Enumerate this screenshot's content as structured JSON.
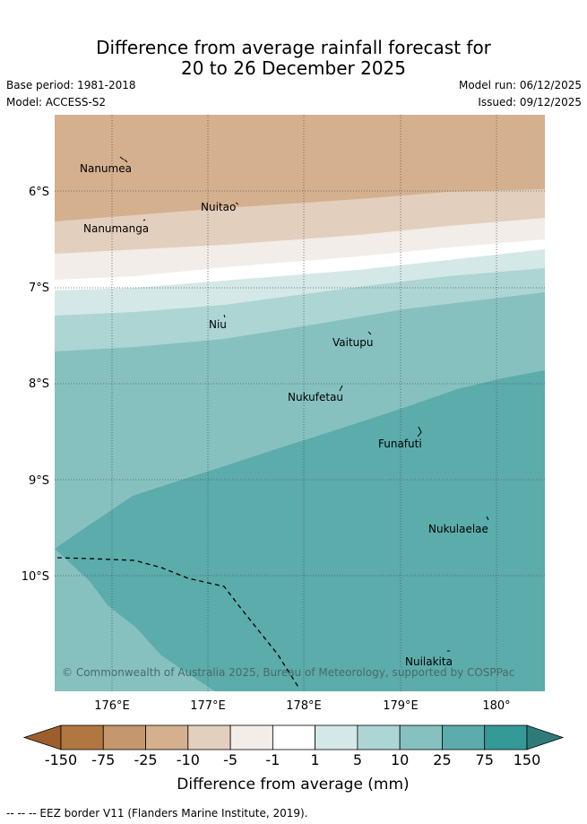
{
  "title": {
    "line1": "Difference from average rainfall forecast for",
    "line2": "20 to 26 December 2025"
  },
  "meta": {
    "base_period": "Base period: 1981-2018",
    "model": "Model: ACCESS-S2",
    "model_run": "Model run: 06/12/2025",
    "issued": "Issued: 09/12/2025"
  },
  "map": {
    "lat_ticks": [
      "6°S",
      "7°S",
      "8°S",
      "9°S",
      "10°S"
    ],
    "lon_ticks": [
      "176°E",
      "177°E",
      "178°E",
      "179°E",
      "180°"
    ],
    "islands": [
      "Nanumea",
      "Nuitao",
      "Nanumanga",
      "Niu",
      "Vaitupu",
      "Nukufetau",
      "Funafuti",
      "Nukulaelae",
      "Nuilakita"
    ],
    "copyright": "© Commonwealth of Australia 2025, Bureau of Meteorology, supported by COSPPac"
  },
  "legend": {
    "label": "Difference from average (mm)",
    "ticks": [
      "-150",
      "-75",
      "-25",
      "-10",
      "-5",
      "-1",
      "1",
      "5",
      "10",
      "25",
      "75",
      "150"
    ],
    "colors": [
      "#9c5e2c",
      "#b07840",
      "#c4976c",
      "#d4b08f",
      "#e3cfbd",
      "#f2ede8",
      "#ffffff",
      "#d4e8e7",
      "#acd5d4",
      "#86c1c0",
      "#5bacab",
      "#359998",
      "#2f7b7a"
    ]
  },
  "footer": "--  --  -- EEZ border V11 (Flanders Marine Institute, 2019)."
}
